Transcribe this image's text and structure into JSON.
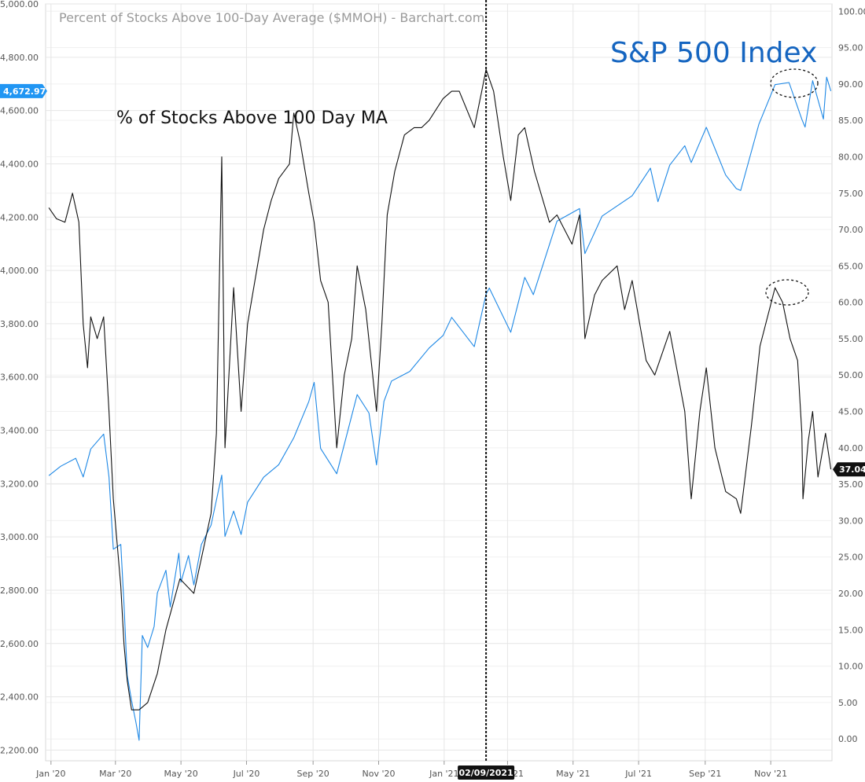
{
  "chart_data": {
    "type": "line",
    "title": "Percent of Stocks Above 100-Day Average ($MMOH) - Barchart.com",
    "annotations": {
      "sp500_label": "S&P 500 Index",
      "pct_label": "% of Stocks Above 100 Day MA"
    },
    "left_axis": {
      "range": [
        2160,
        5000
      ],
      "ticks": [
        "5,000.00",
        "4,800.00",
        "4,600.00",
        "4,400.00",
        "4,200.00",
        "4,000.00",
        "3,800.00",
        "3,600.00",
        "3,400.00",
        "3,200.00",
        "3,000.00",
        "2,800.00",
        "2,600.00",
        "2,400.00",
        "2,200.00"
      ],
      "current_label": "4,672.97",
      "current_value": 4672.97,
      "current_color": "#2196f3"
    },
    "right_axis": {
      "range": [
        -3,
        101
      ],
      "ticks": [
        "100.00",
        "95.00",
        "90.00",
        "85.00",
        "80.00",
        "75.00",
        "70.00",
        "65.00",
        "60.00",
        "55.00",
        "50.00",
        "45.00",
        "40.00",
        "35.00",
        "30.00",
        "25.00",
        "20.00",
        "15.00",
        "10.00",
        "5.00",
        "0.00"
      ],
      "current_label": "37.04",
      "current_value": 37.04,
      "current_color": "#111111"
    },
    "x_axis": {
      "start": "2019-12-27",
      "end": "2021-12-28",
      "ticks": [
        {
          "label": "Jan '20",
          "date": "2020-01-01"
        },
        {
          "label": "Mar '20",
          "date": "2020-03-01"
        },
        {
          "label": "May '20",
          "date": "2020-05-01"
        },
        {
          "label": "Jul '20",
          "date": "2020-07-01"
        },
        {
          "label": "Sep '20",
          "date": "2020-09-01"
        },
        {
          "label": "Nov '20",
          "date": "2020-11-01"
        },
        {
          "label": "Jan '21",
          "date": "2021-01-01"
        },
        {
          "label": "Mar '21",
          "date": "2021-03-01"
        },
        {
          "label": "May '21",
          "date": "2021-05-01"
        },
        {
          "label": "Jul '21",
          "date": "2021-07-01"
        },
        {
          "label": "Sep '21",
          "date": "2021-09-01"
        },
        {
          "label": "Nov '21",
          "date": "2021-11-01"
        }
      ],
      "marker_date": "2021-02-09",
      "marker_label": "02/09/2021"
    },
    "grid": true,
    "series": [
      {
        "name": "S&P 500 Index",
        "axis": "left",
        "color": "#1e88e5",
        "points": [
          [
            "2019-12-30",
            3230
          ],
          [
            "2020-01-10",
            3265
          ],
          [
            "2020-01-24",
            3295
          ],
          [
            "2020-01-31",
            3225
          ],
          [
            "2020-02-07",
            3330
          ],
          [
            "2020-02-19",
            3386
          ],
          [
            "2020-02-24",
            3225
          ],
          [
            "2020-02-28",
            2954
          ],
          [
            "2020-03-06",
            2972
          ],
          [
            "2020-03-09",
            2746
          ],
          [
            "2020-03-12",
            2480
          ],
          [
            "2020-03-16",
            2386
          ],
          [
            "2020-03-20",
            2305
          ],
          [
            "2020-03-23",
            2237
          ],
          [
            "2020-03-26",
            2630
          ],
          [
            "2020-03-31",
            2585
          ],
          [
            "2020-04-06",
            2664
          ],
          [
            "2020-04-09",
            2790
          ],
          [
            "2020-04-17",
            2875
          ],
          [
            "2020-04-21",
            2737
          ],
          [
            "2020-04-29",
            2939
          ],
          [
            "2020-05-01",
            2830
          ],
          [
            "2020-05-08",
            2930
          ],
          [
            "2020-05-13",
            2820
          ],
          [
            "2020-05-20",
            2972
          ],
          [
            "2020-05-29",
            3044
          ],
          [
            "2020-06-08",
            3232
          ],
          [
            "2020-06-11",
            3002
          ],
          [
            "2020-06-19",
            3097
          ],
          [
            "2020-06-26",
            3009
          ],
          [
            "2020-07-02",
            3130
          ],
          [
            "2020-07-17",
            3224
          ],
          [
            "2020-07-31",
            3271
          ],
          [
            "2020-08-14",
            3372
          ],
          [
            "2020-08-28",
            3508
          ],
          [
            "2020-09-02",
            3580
          ],
          [
            "2020-09-08",
            3332
          ],
          [
            "2020-09-23",
            3237
          ],
          [
            "2020-10-12",
            3534
          ],
          [
            "2020-10-23",
            3465
          ],
          [
            "2020-10-30",
            3270
          ],
          [
            "2020-11-06",
            3509
          ],
          [
            "2020-11-13",
            3585
          ],
          [
            "2020-11-30",
            3621
          ],
          [
            "2020-12-18",
            3709
          ],
          [
            "2020-12-31",
            3756
          ],
          [
            "2021-01-08",
            3824
          ],
          [
            "2021-01-29",
            3714
          ],
          [
            "2021-02-09",
            3911
          ],
          [
            "2021-02-12",
            3934
          ],
          [
            "2021-03-04",
            3768
          ],
          [
            "2021-03-17",
            3974
          ],
          [
            "2021-03-25",
            3909
          ],
          [
            "2021-04-16",
            4185
          ],
          [
            "2021-05-07",
            4232
          ],
          [
            "2021-05-12",
            4063
          ],
          [
            "2021-05-28",
            4204
          ],
          [
            "2021-06-25",
            4280
          ],
          [
            "2021-07-12",
            4384
          ],
          [
            "2021-07-19",
            4258
          ],
          [
            "2021-07-30",
            4395
          ],
          [
            "2021-08-13",
            4468
          ],
          [
            "2021-08-19",
            4405
          ],
          [
            "2021-09-02",
            4537
          ],
          [
            "2021-09-20",
            4358
          ],
          [
            "2021-09-30",
            4307
          ],
          [
            "2021-10-04",
            4300
          ],
          [
            "2021-10-21",
            4549
          ],
          [
            "2021-11-05",
            4697
          ],
          [
            "2021-11-18",
            4705
          ],
          [
            "2021-11-30",
            4567
          ],
          [
            "2021-12-03",
            4538
          ],
          [
            "2021-12-10",
            4712
          ],
          [
            "2021-12-20",
            4568
          ],
          [
            "2021-12-23",
            4725
          ],
          [
            "2021-12-27",
            4672.97
          ]
        ]
      },
      {
        "name": "% of Stocks Above 100 Day MA",
        "axis": "right",
        "color": "#111111",
        "points": [
          [
            "2019-12-30",
            73
          ],
          [
            "2020-01-06",
            71.5
          ],
          [
            "2020-01-14",
            71
          ],
          [
            "2020-01-21",
            75
          ],
          [
            "2020-01-27",
            71
          ],
          [
            "2020-01-31",
            57
          ],
          [
            "2020-02-04",
            51
          ],
          [
            "2020-02-07",
            58
          ],
          [
            "2020-02-13",
            55
          ],
          [
            "2020-02-19",
            58
          ],
          [
            "2020-02-24",
            45
          ],
          [
            "2020-02-28",
            33
          ],
          [
            "2020-03-06",
            21
          ],
          [
            "2020-03-09",
            13
          ],
          [
            "2020-03-12",
            8
          ],
          [
            "2020-03-16",
            4
          ],
          [
            "2020-03-23",
            4
          ],
          [
            "2020-03-31",
            5
          ],
          [
            "2020-04-09",
            9
          ],
          [
            "2020-04-17",
            15
          ],
          [
            "2020-04-30",
            22
          ],
          [
            "2020-05-13",
            20
          ],
          [
            "2020-05-29",
            31
          ],
          [
            "2020-06-03",
            42
          ],
          [
            "2020-06-08",
            80
          ],
          [
            "2020-06-11",
            40
          ],
          [
            "2020-06-19",
            62
          ],
          [
            "2020-06-26",
            45
          ],
          [
            "2020-07-02",
            57
          ],
          [
            "2020-07-10",
            64
          ],
          [
            "2020-07-17",
            70
          ],
          [
            "2020-07-24",
            74
          ],
          [
            "2020-07-31",
            77
          ],
          [
            "2020-08-10",
            79
          ],
          [
            "2020-08-14",
            86
          ],
          [
            "2020-08-20",
            82
          ],
          [
            "2020-08-28",
            75
          ],
          [
            "2020-09-02",
            71
          ],
          [
            "2020-09-08",
            63
          ],
          [
            "2020-09-15",
            60
          ],
          [
            "2020-09-23",
            40
          ],
          [
            "2020-09-30",
            50
          ],
          [
            "2020-10-07",
            55
          ],
          [
            "2020-10-12",
            65
          ],
          [
            "2020-10-20",
            59
          ],
          [
            "2020-10-30",
            45
          ],
          [
            "2020-11-04",
            57
          ],
          [
            "2020-11-09",
            72
          ],
          [
            "2020-11-16",
            78
          ],
          [
            "2020-11-25",
            83
          ],
          [
            "2020-12-04",
            84
          ],
          [
            "2020-12-11",
            84
          ],
          [
            "2020-12-18",
            85
          ],
          [
            "2020-12-31",
            88
          ],
          [
            "2021-01-08",
            89
          ],
          [
            "2021-01-15",
            89
          ],
          [
            "2021-01-29",
            84
          ],
          [
            "2021-02-05",
            89
          ],
          [
            "2021-02-09",
            92
          ],
          [
            "2021-02-16",
            89
          ],
          [
            "2021-02-25",
            80
          ],
          [
            "2021-03-04",
            74
          ],
          [
            "2021-03-11",
            83
          ],
          [
            "2021-03-17",
            84
          ],
          [
            "2021-03-26",
            78
          ],
          [
            "2021-04-09",
            71
          ],
          [
            "2021-04-16",
            72
          ],
          [
            "2021-04-30",
            68
          ],
          [
            "2021-05-07",
            72
          ],
          [
            "2021-05-12",
            55
          ],
          [
            "2021-05-21",
            61
          ],
          [
            "2021-05-28",
            63
          ],
          [
            "2021-06-11",
            65
          ],
          [
            "2021-06-18",
            59
          ],
          [
            "2021-06-25",
            63
          ],
          [
            "2021-07-08",
            52
          ],
          [
            "2021-07-16",
            50
          ],
          [
            "2021-07-30",
            56
          ],
          [
            "2021-08-13",
            45
          ],
          [
            "2021-08-19",
            33
          ],
          [
            "2021-08-27",
            45
          ],
          [
            "2021-09-02",
            51
          ],
          [
            "2021-09-10",
            40
          ],
          [
            "2021-09-20",
            34
          ],
          [
            "2021-09-30",
            33
          ],
          [
            "2021-10-04",
            31
          ],
          [
            "2021-10-14",
            43
          ],
          [
            "2021-10-22",
            54
          ],
          [
            "2021-11-05",
            62
          ],
          [
            "2021-11-12",
            60
          ],
          [
            "2021-11-19",
            55
          ],
          [
            "2021-11-26",
            52
          ],
          [
            "2021-11-30",
            42
          ],
          [
            "2021-12-01",
            33
          ],
          [
            "2021-12-06",
            41
          ],
          [
            "2021-12-10",
            45
          ],
          [
            "2021-12-15",
            36
          ],
          [
            "2021-12-22",
            42
          ],
          [
            "2021-12-27",
            37.04
          ]
        ]
      }
    ]
  }
}
